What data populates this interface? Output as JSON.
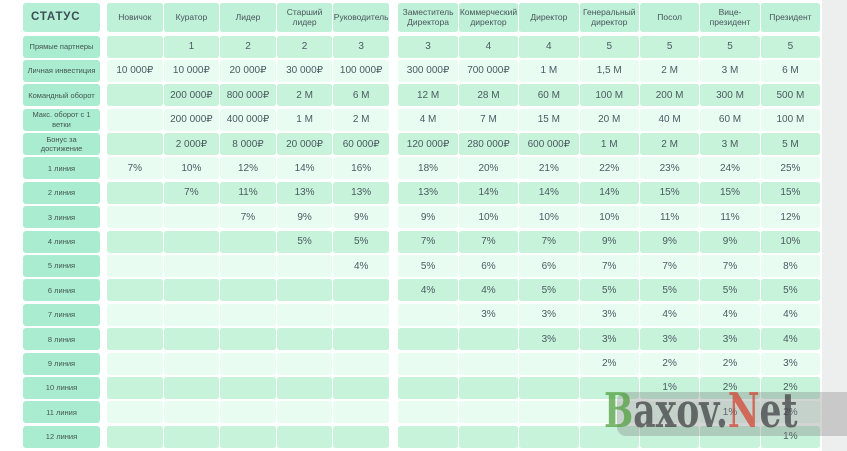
{
  "chart_data": {
    "type": "table",
    "corner_label": "СТАТУС",
    "column_groups": [
      {
        "columns": [
          "Новичок",
          "Куратор",
          "Лидер",
          "Старший лидер",
          "Руководитель"
        ]
      },
      {
        "columns": [
          "Заместитель Директора",
          "Коммерческий директор",
          "Директор",
          "Генеральный директор",
          "Посол",
          "Вице-президент",
          "Президент"
        ]
      }
    ],
    "rows": [
      {
        "label": "Прямые партнеры",
        "values": [
          "",
          "1",
          "2",
          "2",
          "3",
          "3",
          "4",
          "4",
          "5",
          "5",
          "5",
          "5"
        ]
      },
      {
        "label": "Личная инвестиция",
        "values": [
          "10 000₽",
          "10 000₽",
          "20 000₽",
          "30 000₽",
          "100 000₽",
          "300 000₽",
          "700 000₽",
          "1 М",
          "1,5 М",
          "2 М",
          "3 М",
          "6 М"
        ]
      },
      {
        "label": "Командный оборот",
        "values": [
          "",
          "200 000₽",
          "800 000₽",
          "2 М",
          "6 М",
          "12 М",
          "28 М",
          "60 М",
          "100 М",
          "200 М",
          "300 М",
          "500 М"
        ]
      },
      {
        "label": "Макс. оборот с 1 ветки",
        "values": [
          "",
          "200 000₽",
          "400 000₽",
          "1 М",
          "2 М",
          "4 М",
          "7 М",
          "15 М",
          "20 М",
          "40 М",
          "60 М",
          "100 М"
        ]
      },
      {
        "label": "Бонус за достижение",
        "values": [
          "",
          "2 000₽",
          "8 000₽",
          "20 000₽",
          "60 000₽",
          "120 000₽",
          "280 000₽",
          "600 000₽",
          "1 М",
          "2 М",
          "3 М",
          "5 М"
        ]
      },
      {
        "label": "1 линия",
        "values": [
          "7%",
          "10%",
          "12%",
          "14%",
          "16%",
          "18%",
          "20%",
          "21%",
          "22%",
          "23%",
          "24%",
          "25%"
        ]
      },
      {
        "label": "2 линия",
        "values": [
          "",
          "7%",
          "11%",
          "13%",
          "13%",
          "13%",
          "14%",
          "14%",
          "14%",
          "15%",
          "15%",
          "15%"
        ]
      },
      {
        "label": "3 линия",
        "values": [
          "",
          "",
          "7%",
          "9%",
          "9%",
          "9%",
          "10%",
          "10%",
          "10%",
          "11%",
          "11%",
          "12%"
        ]
      },
      {
        "label": "4 линия",
        "values": [
          "",
          "",
          "",
          "5%",
          "5%",
          "7%",
          "7%",
          "7%",
          "9%",
          "9%",
          "9%",
          "10%"
        ]
      },
      {
        "label": "5 линия",
        "values": [
          "",
          "",
          "",
          "",
          "4%",
          "5%",
          "6%",
          "6%",
          "7%",
          "7%",
          "7%",
          "8%"
        ]
      },
      {
        "label": "6 линия",
        "values": [
          "",
          "",
          "",
          "",
          "",
          "4%",
          "4%",
          "5%",
          "5%",
          "5%",
          "5%",
          "5%"
        ]
      },
      {
        "label": "7 линия",
        "values": [
          "",
          "",
          "",
          "",
          "",
          "",
          "3%",
          "3%",
          "3%",
          "4%",
          "4%",
          "4%"
        ]
      },
      {
        "label": "8 линия",
        "values": [
          "",
          "",
          "",
          "",
          "",
          "",
          "",
          "3%",
          "3%",
          "3%",
          "3%",
          "4%"
        ]
      },
      {
        "label": "9 линия",
        "values": [
          "",
          "",
          "",
          "",
          "",
          "",
          "",
          "",
          "2%",
          "2%",
          "2%",
          "3%"
        ]
      },
      {
        "label": "10 линия",
        "values": [
          "",
          "",
          "",
          "",
          "",
          "",
          "",
          "",
          "",
          "1%",
          "2%",
          "2%"
        ]
      },
      {
        "label": "11 линия",
        "values": [
          "",
          "",
          "",
          "",
          "",
          "",
          "",
          "",
          "",
          "",
          "1%",
          "2%"
        ]
      },
      {
        "label": "12 линия",
        "values": [
          "",
          "",
          "",
          "",
          "",
          "",
          "",
          "",
          "",
          "",
          "",
          "1%"
        ]
      }
    ],
    "layout_hints": {
      "striping": "rows alternate green/light starting with green",
      "groups_gap_after_column": 5
    }
  },
  "colors": {
    "cell_green": "#c6f3da",
    "cell_light": "#e9fcf2",
    "row_label_pill": "#a9ecd0",
    "header_cell": "#bff0d8",
    "text": "#4c5a62"
  },
  "watermark": {
    "parts": [
      {
        "text": "B",
        "color": "#4f9e3c"
      },
      {
        "text": "axov",
        "color": "#3c3f40"
      },
      {
        "text": ".",
        "color": "#3c3f40"
      },
      {
        "text": "N",
        "color": "#d44230"
      },
      {
        "text": "et",
        "color": "#3c3f40"
      }
    ]
  }
}
